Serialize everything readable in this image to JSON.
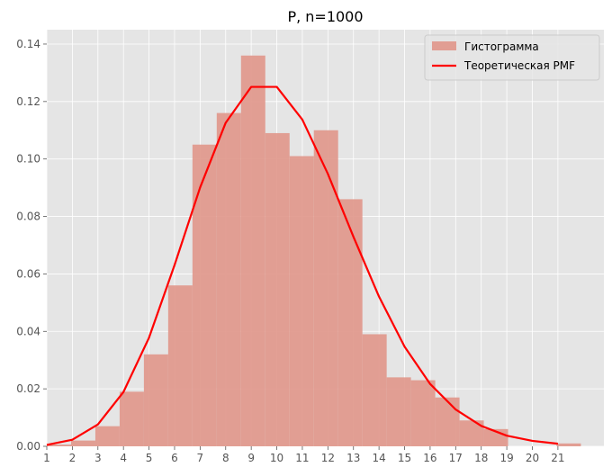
{
  "chart_data": {
    "type": "bar",
    "title": "P, n=1000",
    "xlabel": "",
    "ylabel": "",
    "xlim": [
      1,
      22.8
    ],
    "ylim": [
      0,
      0.145
    ],
    "bin_width": 0.95,
    "xticks": [
      1,
      2,
      3,
      4,
      5,
      6,
      7,
      8,
      9,
      10,
      11,
      12,
      13,
      14,
      15,
      16,
      17,
      18,
      19,
      20,
      21
    ],
    "yticks": [
      0.0,
      0.02,
      0.04,
      0.06,
      0.08,
      0.1,
      0.12,
      0.14
    ],
    "ytick_labels": [
      "0.00",
      "0.02",
      "0.04",
      "0.06",
      "0.08",
      "0.10",
      "0.12",
      "0.14"
    ],
    "grid": true,
    "legend_position": "top-right",
    "series": [
      {
        "name": "Гистограмма",
        "kind": "histogram",
        "color": "#e0968a",
        "bin_left": [
          1.0,
          1.95,
          2.9,
          3.85,
          4.8,
          5.75,
          6.7,
          7.65,
          8.6,
          9.55,
          10.5,
          11.45,
          12.4,
          13.35,
          14.3,
          15.25,
          16.2,
          17.15,
          18.1,
          19.05,
          20.0,
          20.95
        ],
        "values": [
          0.0006,
          0.002,
          0.007,
          0.019,
          0.032,
          0.056,
          0.105,
          0.116,
          0.136,
          0.109,
          0.101,
          0.11,
          0.086,
          0.039,
          0.024,
          0.023,
          0.017,
          0.009,
          0.006,
          0.0,
          0.0,
          0.001
        ]
      },
      {
        "name": "Теоретическая PMF",
        "kind": "line",
        "color": "#ff0000",
        "x": [
          1,
          2,
          3,
          4,
          5,
          6,
          7,
          8,
          9,
          10,
          11,
          12,
          13,
          14,
          15,
          16,
          17,
          18,
          19,
          20,
          21
        ],
        "values": [
          0.0005,
          0.0023,
          0.0076,
          0.0189,
          0.0378,
          0.0631,
          0.0901,
          0.1126,
          0.1251,
          0.1251,
          0.1137,
          0.0948,
          0.0729,
          0.0521,
          0.0347,
          0.0217,
          0.0128,
          0.0071,
          0.0037,
          0.0019,
          0.0009
        ]
      }
    ]
  }
}
